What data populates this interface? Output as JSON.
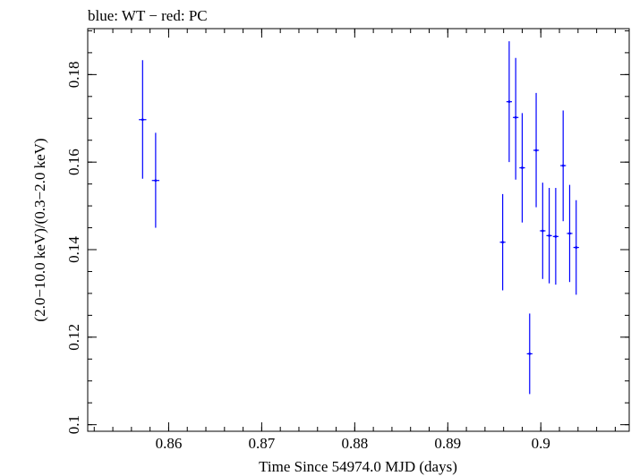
{
  "chart_data": {
    "type": "scatter",
    "title": "blue: WT − red: PC",
    "xlabel": "Time Since 54974.0 MJD (days)",
    "ylabel": "(2.0−10.0 keV)/(0.3−2.0 keV)",
    "xlim": [
      0.8513,
      0.9095
    ],
    "ylim": [
      0.0985,
      0.1905
    ],
    "x_major_ticks": [
      0.86,
      0.87,
      0.88,
      0.89,
      0.9
    ],
    "x_tick_labels": [
      "0.86",
      "0.87",
      "0.88",
      "0.89",
      "0.9"
    ],
    "x_minor_step": 0.002,
    "y_major_ticks": [
      0.1,
      0.12,
      0.14,
      0.16,
      0.18
    ],
    "y_tick_labels": [
      "0.1",
      "0.12",
      "0.14",
      "0.16",
      "0.18"
    ],
    "y_minor_step": 0.005,
    "series": [
      {
        "name": "WT",
        "color": "#0000ff",
        "points": [
          {
            "x": 0.8572,
            "y": 0.1697,
            "ylo": 0.1562,
            "yhi": 0.1833,
            "xerr": 0.0004
          },
          {
            "x": 0.8586,
            "y": 0.1558,
            "ylo": 0.145,
            "yhi": 0.1667,
            "xerr": 0.0004
          },
          {
            "x": 0.8959,
            "y": 0.1417,
            "ylo": 0.1307,
            "yhi": 0.1527,
            "xerr": 0.0003
          },
          {
            "x": 0.8966,
            "y": 0.1738,
            "ylo": 0.16,
            "yhi": 0.1876,
            "xerr": 0.0003
          },
          {
            "x": 0.8973,
            "y": 0.1702,
            "ylo": 0.156,
            "yhi": 0.1838,
            "xerr": 0.0003
          },
          {
            "x": 0.898,
            "y": 0.1587,
            "ylo": 0.1462,
            "yhi": 0.1712,
            "xerr": 0.0003
          },
          {
            "x": 0.8988,
            "y": 0.1162,
            "ylo": 0.107,
            "yhi": 0.1254,
            "xerr": 0.0003
          },
          {
            "x": 0.8995,
            "y": 0.1627,
            "ylo": 0.1497,
            "yhi": 0.1758,
            "xerr": 0.0003
          },
          {
            "x": 0.9002,
            "y": 0.1443,
            "ylo": 0.1333,
            "yhi": 0.1553,
            "xerr": 0.0003
          },
          {
            "x": 0.9009,
            "y": 0.1432,
            "ylo": 0.1323,
            "yhi": 0.1541,
            "xerr": 0.0003
          },
          {
            "x": 0.9016,
            "y": 0.143,
            "ylo": 0.132,
            "yhi": 0.1541,
            "xerr": 0.0003
          },
          {
            "x": 0.9024,
            "y": 0.1592,
            "ylo": 0.1465,
            "yhi": 0.1718,
            "xerr": 0.0003
          },
          {
            "x": 0.9031,
            "y": 0.1437,
            "ylo": 0.1326,
            "yhi": 0.1548,
            "xerr": 0.0003
          },
          {
            "x": 0.9038,
            "y": 0.1405,
            "ylo": 0.1297,
            "yhi": 0.1513,
            "xerr": 0.0003
          }
        ]
      }
    ]
  }
}
